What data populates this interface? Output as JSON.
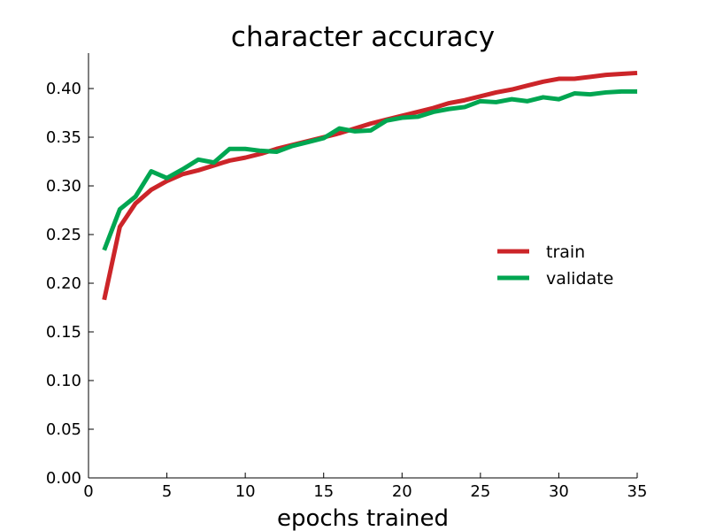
{
  "chart_data": {
    "type": "line",
    "title": "character accuracy",
    "xlabel": "epochs trained",
    "ylabel": "",
    "xlim": [
      0,
      35
    ],
    "ylim": [
      0,
      0.4364
    ],
    "x_ticks": [
      "0",
      "5",
      "10",
      "15",
      "20",
      "25",
      "30",
      "35"
    ],
    "x_tick_values": [
      0,
      5,
      10,
      15,
      20,
      25,
      30,
      35
    ],
    "y_ticks": [
      "0.00",
      "0.05",
      "0.10",
      "0.15",
      "0.20",
      "0.25",
      "0.30",
      "0.35",
      "0.40"
    ],
    "y_tick_values": [
      0,
      0.05,
      0.1,
      0.15,
      0.2,
      0.25,
      0.3,
      0.35,
      0.4
    ],
    "grid": false,
    "legend_position": "right",
    "x": [
      1,
      2,
      3,
      4,
      5,
      6,
      7,
      8,
      9,
      10,
      11,
      12,
      13,
      14,
      15,
      16,
      17,
      18,
      19,
      20,
      21,
      22,
      23,
      24,
      25,
      26,
      27,
      28,
      29,
      30,
      31,
      32,
      33,
      34,
      35
    ],
    "series": [
      {
        "name": "train",
        "color": "#cc2529",
        "values": [
          0.183,
          0.258,
          0.282,
          0.296,
          0.305,
          0.312,
          0.316,
          0.321,
          0.326,
          0.329,
          0.333,
          0.338,
          0.342,
          0.346,
          0.35,
          0.354,
          0.359,
          0.364,
          0.368,
          0.372,
          0.376,
          0.38,
          0.385,
          0.388,
          0.392,
          0.396,
          0.399,
          0.403,
          0.407,
          0.41,
          0.41,
          0.412,
          0.414,
          0.415,
          0.416
        ]
      },
      {
        "name": "validate",
        "color": "#00a651",
        "values": [
          0.234,
          0.276,
          0.289,
          0.315,
          0.308,
          0.317,
          0.327,
          0.324,
          0.338,
          0.338,
          0.336,
          0.335,
          0.341,
          0.345,
          0.349,
          0.359,
          0.356,
          0.357,
          0.367,
          0.37,
          0.371,
          0.376,
          0.379,
          0.381,
          0.387,
          0.386,
          0.389,
          0.387,
          0.391,
          0.389,
          0.395,
          0.394,
          0.396,
          0.397,
          0.397
        ]
      }
    ]
  }
}
